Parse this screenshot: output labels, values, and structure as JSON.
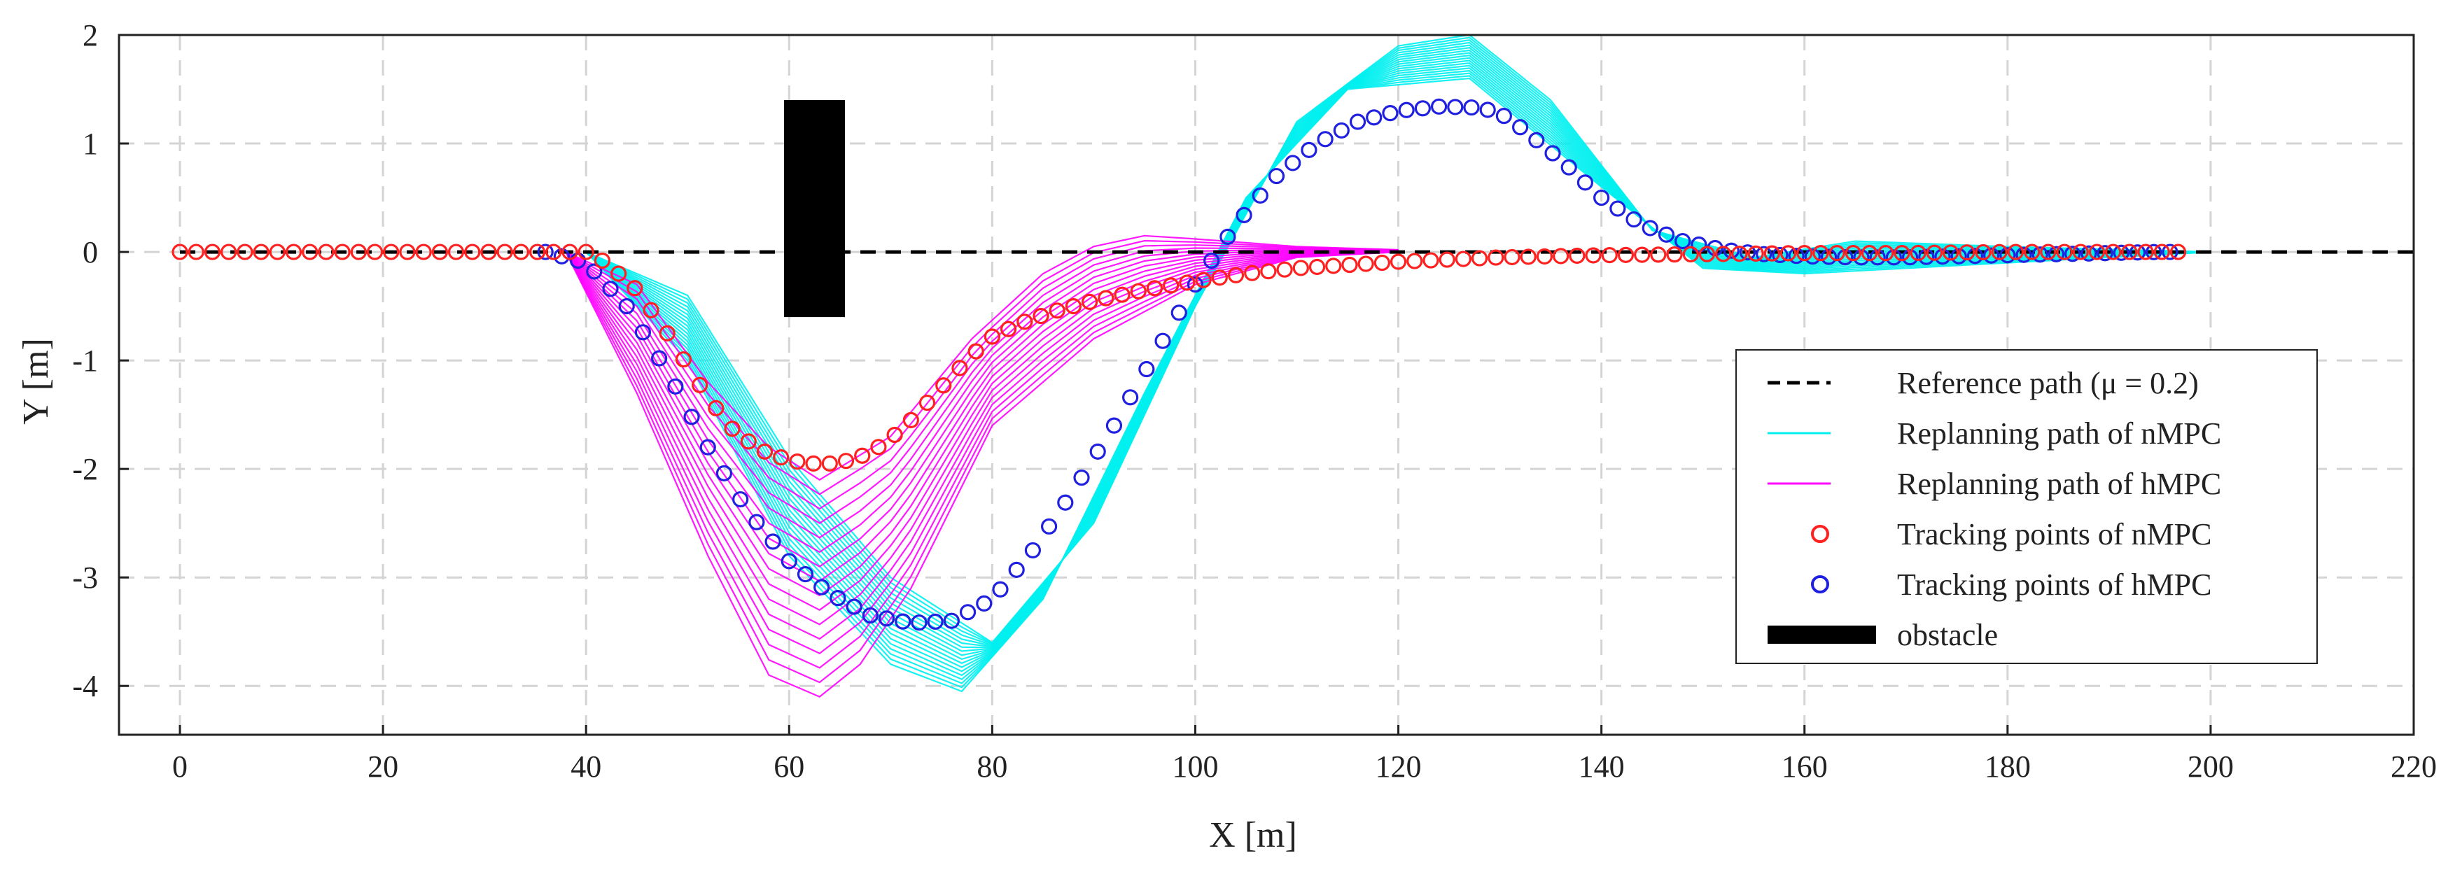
{
  "chart_data": {
    "type": "line",
    "title": "",
    "xlabel": "X [m]",
    "ylabel": "Y [m]",
    "xlim": [
      -6,
      220
    ],
    "ylim": [
      -4.45,
      2
    ],
    "xticks": [
      0,
      20,
      40,
      60,
      80,
      100,
      120,
      140,
      160,
      180,
      200,
      220
    ],
    "yticks": [
      -4,
      -3,
      -2,
      -1,
      0,
      1,
      2
    ],
    "grid": true,
    "legend_position": "lower-right",
    "colors": {
      "reference": "#000000",
      "nmpc_replan": "#00f0f0",
      "hmpc_replan": "#ff00ff",
      "nmpc_points": "#ff2020",
      "hmpc_points": "#2020e0",
      "obstacle": "#000000"
    },
    "obstacle": {
      "x": [
        59.5,
        65.5
      ],
      "y": [
        -0.6,
        1.4
      ]
    },
    "series": [
      {
        "name": "Reference path (μ = 0.2)",
        "style": "dashed",
        "x": [
          0,
          220
        ],
        "y": [
          0,
          0
        ]
      },
      {
        "name": "Replanning path of nMPC",
        "style": "lines",
        "envelope_upper": {
          "x": [
            40,
            50,
            60,
            70,
            80,
            90,
            100,
            110,
            120,
            127,
            135,
            145,
            155,
            165,
            180,
            200
          ],
          "y": [
            0,
            -0.4,
            -1.9,
            -3.0,
            -3.6,
            -2.5,
            -0.5,
            1.2,
            1.9,
            2.0,
            1.4,
            0.2,
            -0.05,
            0.1,
            0.05,
            0
          ]
        },
        "envelope_lower": {
          "x": [
            40,
            50,
            60,
            70,
            77,
            85,
            95,
            105,
            115,
            127,
            140,
            150,
            160,
            180,
            200
          ],
          "y": [
            0,
            -1.0,
            -2.8,
            -3.8,
            -4.05,
            -3.2,
            -1.3,
            0.5,
            1.5,
            1.6,
            0.6,
            -0.15,
            -0.2,
            -0.1,
            0
          ]
        }
      },
      {
        "name": "Replanning path of hMPC",
        "style": "lines",
        "envelope_upper": {
          "x": [
            38,
            45,
            52,
            58,
            63,
            70,
            78,
            85,
            90,
            95,
            100,
            110,
            120,
            140
          ],
          "y": [
            0,
            -0.3,
            -1.2,
            -1.8,
            -2.1,
            -1.7,
            -0.8,
            -0.2,
            0.05,
            0.15,
            0.12,
            0.05,
            0.02,
            0
          ]
        },
        "envelope_lower": {
          "x": [
            38,
            45,
            52,
            58,
            63,
            67,
            72,
            80,
            90,
            100,
            110,
            120
          ],
          "y": [
            0,
            -1.3,
            -2.8,
            -3.9,
            -4.1,
            -3.8,
            -3.1,
            -1.6,
            -0.8,
            -0.3,
            -0.05,
            0
          ]
        }
      },
      {
        "name": "Tracking points of nMPC",
        "style": "markers",
        "x": [
          0,
          40,
          42,
          45,
          48,
          51,
          54,
          57,
          60,
          62,
          64,
          66,
          68,
          70,
          72,
          74,
          76,
          78,
          80,
          83,
          86,
          90,
          95,
          100,
          105,
          110,
          120,
          130,
          140,
          150,
          160,
          170,
          180,
          190,
          197
        ],
        "y": [
          0,
          0,
          -0.1,
          -0.35,
          -0.75,
          -1.2,
          -1.6,
          -1.82,
          -1.92,
          -1.95,
          -1.95,
          -1.92,
          -1.85,
          -1.72,
          -1.55,
          -1.35,
          -1.15,
          -0.95,
          -0.78,
          -0.65,
          -0.55,
          -0.45,
          -0.35,
          -0.27,
          -0.2,
          -0.15,
          -0.09,
          -0.05,
          -0.03,
          -0.02,
          -0.01,
          -0.01,
          0,
          0,
          0
        ]
      },
      {
        "name": "Tracking points of hMPC",
        "style": "markers",
        "x": [
          36,
          40,
          44,
          48,
          52,
          56,
          60,
          64,
          68,
          72,
          76,
          80,
          84,
          88,
          92,
          96,
          100,
          104,
          108,
          112,
          116,
          120,
          124,
          128,
          130,
          132,
          136,
          140,
          144,
          148,
          152,
          156,
          160,
          165,
          170,
          175,
          180,
          185,
          190,
          195,
          197
        ],
        "y": [
          0,
          -0.1,
          -0.5,
          -1.1,
          -1.8,
          -2.4,
          -2.85,
          -3.15,
          -3.35,
          -3.42,
          -3.4,
          -3.2,
          -2.75,
          -2.2,
          -1.6,
          -0.95,
          -0.3,
          0.25,
          0.7,
          1.0,
          1.2,
          1.3,
          1.34,
          1.33,
          1.28,
          1.15,
          0.85,
          0.5,
          0.25,
          0.1,
          0.02,
          -0.02,
          -0.04,
          -0.05,
          -0.05,
          -0.04,
          -0.03,
          -0.02,
          -0.01,
          0,
          0
        ]
      }
    ],
    "legend_entries": [
      "Reference path (μ = 0.2)",
      "Replanning path of nMPC",
      "Replanning path of hMPC",
      "Tracking points of nMPC",
      "Tracking points of hMPC",
      "obstacle"
    ]
  }
}
